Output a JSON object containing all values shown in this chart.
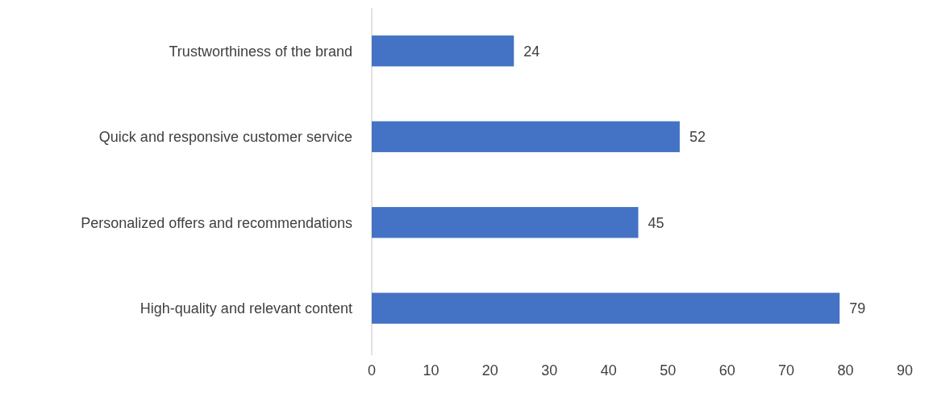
{
  "chart_data": {
    "type": "bar",
    "orientation": "horizontal",
    "categories": [
      "Trustworthiness of the brand",
      "Quick and responsive customer service",
      "Personalized offers and recommendations",
      "High-quality and relevant content"
    ],
    "values": [
      24,
      52,
      45,
      79
    ],
    "color": "#4472c4",
    "xlim": [
      0,
      90
    ],
    "xticks": [
      0,
      10,
      20,
      30,
      40,
      50,
      60,
      70,
      80,
      90
    ],
    "data_labels": true,
    "grid": false
  }
}
